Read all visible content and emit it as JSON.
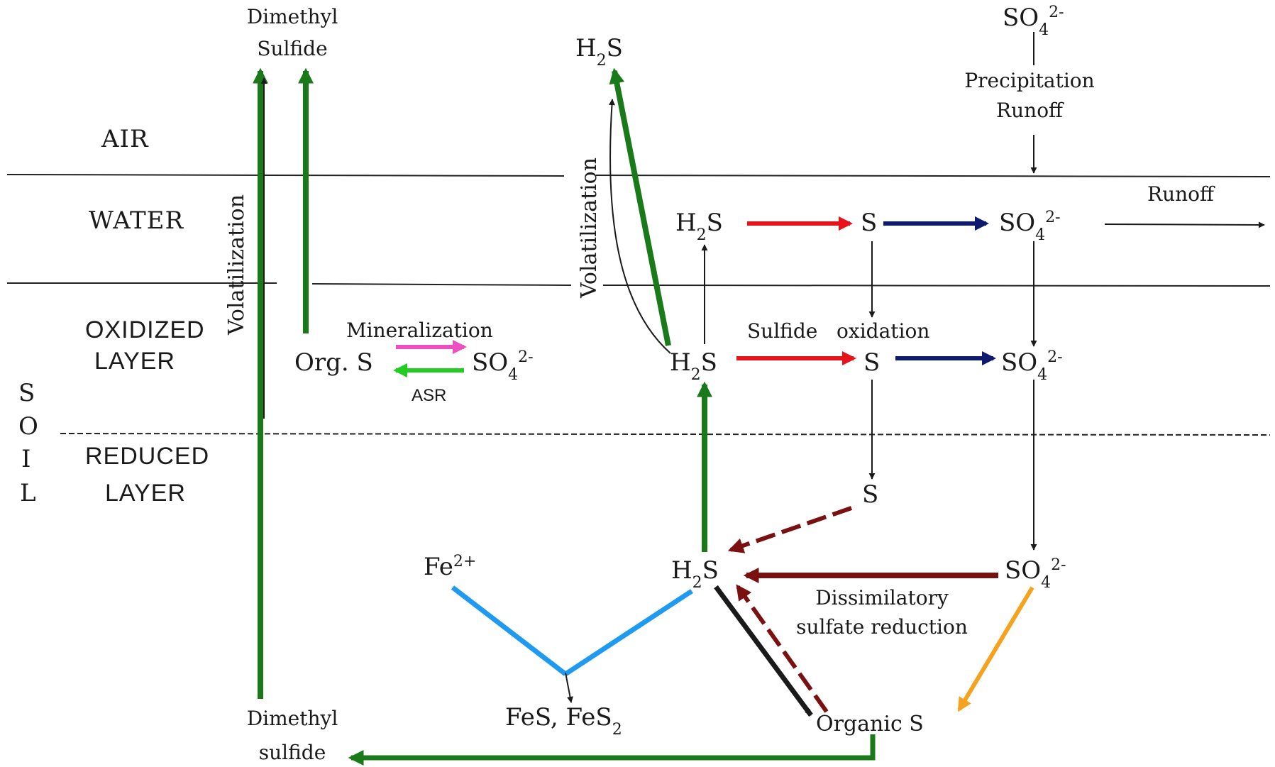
{
  "zones": {
    "air": "AIR",
    "water": "WATER",
    "oxidized": [
      "OXIDIZED",
      "LAYER"
    ],
    "reduced": [
      "REDUCED",
      "LAYER"
    ],
    "soil_letters": [
      "S",
      "O",
      "I",
      "L"
    ]
  },
  "species": {
    "dms_air": [
      "Dimethyl",
      "Sulfide"
    ],
    "h2s_air": "H2S",
    "so4_air": "SO42-",
    "h2s_water": "H2S",
    "s_water": "S",
    "so4_water": "SO42-",
    "org_s": "Org.  S",
    "so4_oxidized_left": "SO42-",
    "h2s_oxidized": "H2S",
    "s_oxidized": "S",
    "so4_oxidized": "SO42-",
    "s_reduced": "S",
    "fe2": "Fe2+",
    "h2s_reduced": "H2S",
    "so4_reduced": "SO42-",
    "fes": "FeS,  FeS2",
    "organic_s": "Organic  S",
    "dms_soil": [
      "Dimethyl",
      "sulfide"
    ]
  },
  "processes": {
    "precipitation": [
      "Precipitation",
      "Runoff"
    ],
    "runoff": "Runoff",
    "volatilization_left": "Volatilization",
    "volatilization_right": "Volatilization",
    "mineralization": "Mineralization",
    "asr": "ASR",
    "sulfide_oxidation": "Sulfide   oxidation",
    "dissimilatory": [
      "Dissimilatory",
      "sulfate reduction"
    ]
  },
  "colors": {
    "volatilization": "#1a7a1a",
    "sulfide_to_sulfur": "#e8121a",
    "sulfur_to_sulfate": "#0d1a6e",
    "mineralization": "#ee4fc0",
    "asr": "#22cc22",
    "sulfate_reduction": "#7a1010",
    "iron_sulfide": "#1e9af0",
    "assimilation": "#f5a21e",
    "black": "#1a1a1a"
  }
}
